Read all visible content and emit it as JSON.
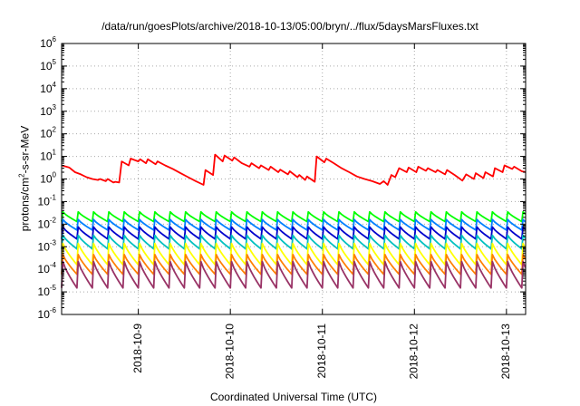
{
  "chart_data": {
    "type": "line",
    "title": "/data/run/goesPlots/archive/2018-10-13/05:00/bryn/../flux/5daysMarsFluxes.txt",
    "xlabel": "Coordinated Universal Time (UTC)",
    "ylabel": {
      "prefix": "protons/cm",
      "sup": "2",
      "suffix": "-s-sr-MeV"
    },
    "xlim": [
      "2018-10-08T04:00",
      "2018-10-13T05:00"
    ],
    "x_ticks": [
      "2018-10-9",
      "2018-10-10",
      "2018-10-11",
      "2018-10-12",
      "2018-10-13"
    ],
    "y_scale": "log",
    "ylim": [
      1e-06,
      1000000.0
    ],
    "y_ticks": [
      {
        "base": "10",
        "exp": "-6",
        "value": 1e-06
      },
      {
        "base": "10",
        "exp": "-5",
        "value": 1e-05
      },
      {
        "base": "10",
        "exp": "-4",
        "value": 0.0001
      },
      {
        "base": "10",
        "exp": "-3",
        "value": 0.001
      },
      {
        "base": "10",
        "exp": "-2",
        "value": 0.01
      },
      {
        "base": "10",
        "exp": "-1",
        "value": 0.1
      },
      {
        "base": "10",
        "exp": "0",
        "value": 1
      },
      {
        "base": "10",
        "exp": "1",
        "value": 10
      },
      {
        "base": "10",
        "exp": "2",
        "value": 100
      },
      {
        "base": "10",
        "exp": "3",
        "value": 1000
      },
      {
        "base": "10",
        "exp": "4",
        "value": 10000
      },
      {
        "base": "10",
        "exp": "5",
        "value": 100000
      },
      {
        "base": "10",
        "exp": "6",
        "value": 1000000
      }
    ],
    "grid": true,
    "legend": "none",
    "series": [
      {
        "color": "#ff0000",
        "points": [
          [
            "2018-10-08T04:00",
            4.0
          ],
          [
            "2018-10-08T06:00",
            3.2
          ],
          [
            "2018-10-08T07:30",
            2.0
          ],
          [
            "2018-10-08T09:00",
            1.6
          ],
          [
            "2018-10-08T10:30",
            1.2
          ],
          [
            "2018-10-08T12:00",
            1.0
          ],
          [
            "2018-10-08T13:30",
            0.9
          ],
          [
            "2018-10-08T14:00",
            1.0
          ],
          [
            "2018-10-08T15:30",
            0.8
          ],
          [
            "2018-10-08T16:00",
            1.0
          ],
          [
            "2018-10-08T17:30",
            0.7
          ],
          [
            "2018-10-08T18:00",
            0.75
          ],
          [
            "2018-10-08T19:00",
            0.7
          ],
          [
            "2018-10-08T19:40",
            6.0
          ],
          [
            "2018-10-08T21:30",
            4.0
          ],
          [
            "2018-10-08T22:00",
            8.0
          ],
          [
            "2018-10-09T00:00",
            6.0
          ],
          [
            "2018-10-09T00:30",
            7.5
          ],
          [
            "2018-10-09T02:00",
            5.0
          ],
          [
            "2018-10-09T02:30",
            7.5
          ],
          [
            "2018-10-09T04:30",
            4.5
          ],
          [
            "2018-10-09T05:00",
            6.0
          ],
          [
            "2018-10-09T07:00",
            4.0
          ],
          [
            "2018-10-09T09:00",
            2.8
          ],
          [
            "2018-10-09T11:00",
            1.8
          ],
          [
            "2018-10-09T13:00",
            1.2
          ],
          [
            "2018-10-09T15:00",
            0.8
          ],
          [
            "2018-10-09T17:00",
            0.55
          ],
          [
            "2018-10-09T17:30",
            2.5
          ],
          [
            "2018-10-09T19:30",
            1.5
          ],
          [
            "2018-10-09T20:00",
            12.0
          ],
          [
            "2018-10-09T22:00",
            6.0
          ],
          [
            "2018-10-09T22:30",
            11.0
          ],
          [
            "2018-10-10T00:30",
            6.5
          ],
          [
            "2018-10-10T01:00",
            9.0
          ],
          [
            "2018-10-10T03:00",
            5.0
          ],
          [
            "2018-10-10T05:00",
            3.5
          ],
          [
            "2018-10-10T05:30",
            5.0
          ],
          [
            "2018-10-10T07:30",
            3.0
          ],
          [
            "2018-10-10T08:00",
            4.0
          ],
          [
            "2018-10-10T10:00",
            2.5
          ],
          [
            "2018-10-10T10:30",
            3.5
          ],
          [
            "2018-10-10T12:30",
            2.0
          ],
          [
            "2018-10-10T13:00",
            2.6
          ],
          [
            "2018-10-10T15:00",
            1.6
          ],
          [
            "2018-10-10T15:30",
            2.2
          ],
          [
            "2018-10-10T17:30",
            1.2
          ],
          [
            "2018-10-10T18:00",
            1.5
          ],
          [
            "2018-10-10T19:30",
            0.9
          ],
          [
            "2018-10-10T20:00",
            1.3
          ],
          [
            "2018-10-10T22:00",
            0.75
          ],
          [
            "2018-10-10T22:30",
            10.0
          ],
          [
            "2018-10-11T00:30",
            5.5
          ],
          [
            "2018-10-11T01:00",
            8.0
          ],
          [
            "2018-10-11T03:00",
            5.0
          ],
          [
            "2018-10-11T05:00",
            3.0
          ],
          [
            "2018-10-11T07:00",
            2.0
          ],
          [
            "2018-10-11T09:00",
            1.3
          ],
          [
            "2018-10-11T11:00",
            1.0
          ],
          [
            "2018-10-11T13:00",
            0.8
          ],
          [
            "2018-10-11T15:00",
            0.6
          ],
          [
            "2018-10-11T16:00",
            0.8
          ],
          [
            "2018-10-11T17:00",
            0.55
          ],
          [
            "2018-10-11T18:00",
            1.5
          ],
          [
            "2018-10-11T19:00",
            1.2
          ],
          [
            "2018-10-11T20:00",
            3.0
          ],
          [
            "2018-10-11T22:00",
            2.0
          ],
          [
            "2018-10-11T22:30",
            3.2
          ],
          [
            "2018-10-12T00:30",
            2.0
          ],
          [
            "2018-10-12T01:00",
            3.5
          ],
          [
            "2018-10-12T03:00",
            2.3
          ],
          [
            "2018-10-12T03:30",
            3.0
          ],
          [
            "2018-10-12T05:30",
            2.0
          ],
          [
            "2018-10-12T06:00",
            2.5
          ],
          [
            "2018-10-12T08:00",
            1.6
          ],
          [
            "2018-10-12T08:30",
            2.5
          ],
          [
            "2018-10-12T10:30",
            1.5
          ],
          [
            "2018-10-12T12:30",
            0.85
          ],
          [
            "2018-10-12T13:30",
            1.6
          ],
          [
            "2018-10-12T15:30",
            1.0
          ],
          [
            "2018-10-12T16:00",
            1.8
          ],
          [
            "2018-10-12T18:00",
            1.1
          ],
          [
            "2018-10-12T18:30",
            2.0
          ],
          [
            "2018-10-12T20:30",
            1.3
          ],
          [
            "2018-10-12T21:00",
            3.0
          ],
          [
            "2018-10-12T23:00",
            2.0
          ],
          [
            "2018-10-12T23:30",
            4.0
          ],
          [
            "2018-10-13T01:30",
            2.8
          ],
          [
            "2018-10-13T02:00",
            3.5
          ],
          [
            "2018-10-13T04:00",
            2.2
          ],
          [
            "2018-10-13T05:00",
            2.0
          ]
        ]
      },
      {
        "color": "#00ff00",
        "sawtooth": {
          "period_hours": 4.0,
          "start": "2018-10-08T04:00",
          "high": 0.035,
          "low": 0.013
        }
      },
      {
        "color": "#0080ff",
        "sawtooth": {
          "period_hours": 4.0,
          "start": "2018-10-08T04:00",
          "high": 0.016,
          "low": 0.0055
        }
      },
      {
        "color": "#0000cc",
        "sawtooth": {
          "period_hours": 4.0,
          "start": "2018-10-08T04:00",
          "high": 0.0075,
          "low": 0.0022
        }
      },
      {
        "color": "#00c0c0",
        "sawtooth": {
          "period_hours": 4.0,
          "start": "2018-10-08T04:00",
          "high": 0.0032,
          "low": 0.0008
        }
      },
      {
        "color": "#ffff00",
        "sawtooth": {
          "period_hours": 4.0,
          "start": "2018-10-08T04:00",
          "high": 0.0014,
          "low": 0.00016
        }
      },
      {
        "color": "#ff8000",
        "sawtooth": {
          "period_hours": 4.0,
          "start": "2018-10-08T04:00",
          "high": 0.00045,
          "low": 6e-05
        }
      },
      {
        "color": "#993366",
        "sawtooth": {
          "period_hours": 4.0,
          "start": "2018-10-08T04:00",
          "high": 0.00022,
          "low": 1.5e-05
        }
      }
    ]
  }
}
